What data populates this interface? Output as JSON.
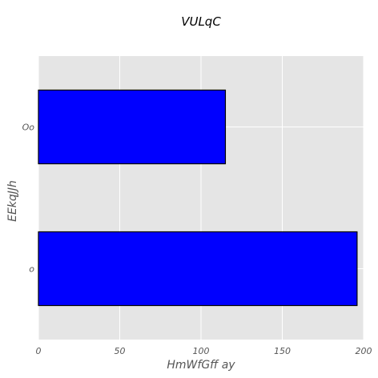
{
  "chart_data": {
    "type": "bar",
    "orientation": "horizontal",
    "title": "VULqC",
    "xlabel": "HmWfGff ay",
    "ylabel": "EEkqJJh",
    "categories": [
      "o",
      "Oo"
    ],
    "values": [
      196,
      115
    ],
    "xlim": [
      0,
      200
    ],
    "xticks": [
      0,
      50,
      100,
      150,
      200
    ],
    "grid": true,
    "bar_color": "#0000ff",
    "bar_edge_color": "#000000",
    "plot_background": "#e5e5e5",
    "grid_color": "#ffffff"
  }
}
